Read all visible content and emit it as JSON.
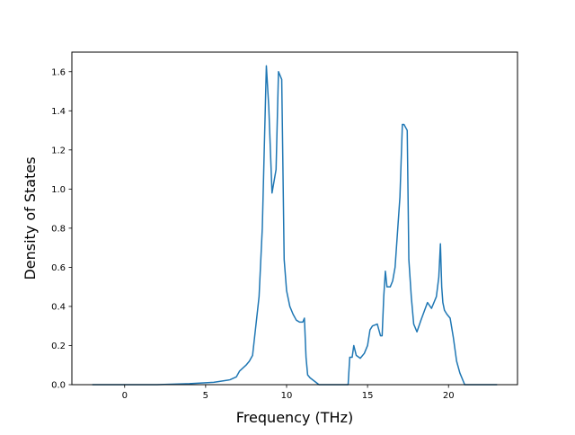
{
  "chart_data": {
    "type": "line",
    "title": "",
    "xlabel": "Frequency (THz)",
    "ylabel": "Density of States",
    "xlim": [
      -3.26,
      24.26
    ],
    "ylim": [
      0.0,
      1.7
    ],
    "xticks": [
      0,
      5,
      10,
      15,
      20
    ],
    "xtick_labels": [
      "0",
      "5",
      "10",
      "15",
      "20"
    ],
    "yticks": [
      0.0,
      0.2,
      0.4,
      0.6,
      0.8,
      1.0,
      1.2,
      1.4,
      1.6
    ],
    "ytick_labels": [
      "0.0",
      "0.2",
      "0.4",
      "0.6",
      "0.8",
      "1.0",
      "1.2",
      "1.4",
      "1.6"
    ],
    "grid": false,
    "legend": "none",
    "line_color": "#1f77b4",
    "series": [
      {
        "x": [
          -2.0,
          0.0,
          2.0,
          4.0,
          5.5,
          6.5,
          6.9,
          7.1,
          7.5,
          7.7,
          7.9,
          8.1,
          8.3,
          8.5,
          8.65,
          8.75,
          8.9,
          9.1,
          9.35,
          9.5,
          9.7,
          9.85,
          10.0,
          10.2,
          10.4,
          10.6,
          10.8,
          11.0,
          11.1,
          11.2,
          11.3,
          11.45,
          12.0,
          13.0,
          13.8,
          13.9,
          14.05,
          14.15,
          14.3,
          14.55,
          14.8,
          15.0,
          15.15,
          15.3,
          15.6,
          15.8,
          15.9,
          16.0,
          16.1,
          16.2,
          16.4,
          16.55,
          16.7,
          16.85,
          17.0,
          17.15,
          17.25,
          17.45,
          17.55,
          17.7,
          17.85,
          18.05,
          18.3,
          18.7,
          18.95,
          19.25,
          19.4,
          19.5,
          19.58,
          19.65,
          19.75,
          19.9,
          20.1,
          20.3,
          20.5,
          20.7,
          21.0,
          21.2,
          23.0
        ],
        "y": [
          0.0,
          0.0,
          0.0,
          0.005,
          0.012,
          0.025,
          0.04,
          0.07,
          0.1,
          0.12,
          0.15,
          0.3,
          0.45,
          0.8,
          1.3,
          1.63,
          1.42,
          0.98,
          1.1,
          1.6,
          1.56,
          0.64,
          0.48,
          0.4,
          0.36,
          0.33,
          0.32,
          0.32,
          0.34,
          0.14,
          0.05,
          0.035,
          0.0,
          0.0,
          0.0,
          0.14,
          0.14,
          0.2,
          0.15,
          0.135,
          0.16,
          0.2,
          0.28,
          0.3,
          0.31,
          0.25,
          0.25,
          0.45,
          0.58,
          0.5,
          0.5,
          0.53,
          0.6,
          0.78,
          0.96,
          1.33,
          1.33,
          1.3,
          0.64,
          0.45,
          0.31,
          0.27,
          0.33,
          0.42,
          0.39,
          0.45,
          0.55,
          0.72,
          0.5,
          0.42,
          0.38,
          0.36,
          0.34,
          0.24,
          0.12,
          0.06,
          0.0,
          0.0,
          0.0
        ]
      }
    ]
  }
}
